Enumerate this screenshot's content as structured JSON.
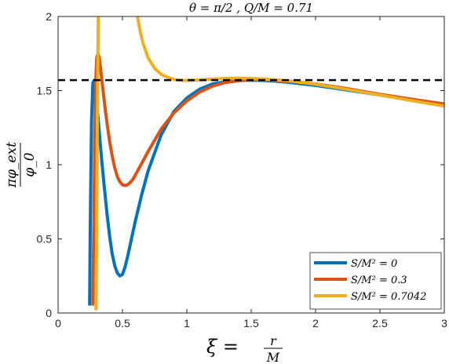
{
  "chart_data": {
    "type": "line",
    "title": "θ = π/2 ,    Q/M = 0.71",
    "xlabel": {
      "lhs": "ξ =",
      "num": "r",
      "den": "M"
    },
    "ylabel": {
      "num": "πφ_ext",
      "den": "φ_0"
    },
    "xlim": [
      0,
      3
    ],
    "ylim": [
      0,
      2
    ],
    "xticks": [
      0,
      0.5,
      1,
      1.5,
      2,
      2.5,
      3
    ],
    "xtick_labels": [
      "0",
      "0.5",
      "1",
      "1.5",
      "2",
      "2.5",
      "3"
    ],
    "yticks": [
      0,
      0.5,
      1,
      1.5,
      2
    ],
    "ytick_labels": [
      "0",
      "0.5",
      "1",
      "1.5",
      "2"
    ],
    "grid": false,
    "legend_position": "bottom-right",
    "reference_line": {
      "y": 1.5708,
      "style": "dashed",
      "color": "#000000"
    },
    "series": [
      {
        "name": "S/M² = 0",
        "color": "#0072BD",
        "x": [
          0.245,
          0.25,
          0.26,
          0.27,
          0.28,
          0.29,
          0.3,
          0.32,
          0.34,
          0.36,
          0.38,
          0.4,
          0.42,
          0.44,
          0.46,
          0.48,
          0.5,
          0.52,
          0.54,
          0.56,
          0.6,
          0.65,
          0.7,
          0.8,
          0.9,
          1.0,
          1.1,
          1.2,
          1.3,
          1.4,
          1.5,
          1.6,
          1.7,
          1.8,
          2.0,
          2.2,
          2.5,
          2.8,
          3.0
        ],
        "y": [
          0.05,
          0.6,
          1.3,
          1.55,
          1.57,
          1.52,
          1.42,
          1.22,
          1.02,
          0.84,
          0.67,
          0.52,
          0.4,
          0.32,
          0.27,
          0.25,
          0.26,
          0.31,
          0.38,
          0.46,
          0.62,
          0.8,
          0.96,
          1.2,
          1.36,
          1.45,
          1.51,
          1.545,
          1.56,
          1.568,
          1.57,
          1.568,
          1.563,
          1.555,
          1.535,
          1.51,
          1.47,
          1.43,
          1.41
        ]
      },
      {
        "name": "S/M² = 0.3",
        "color": "#D95319",
        "x": [
          0.27,
          0.28,
          0.29,
          0.3,
          0.31,
          0.32,
          0.33,
          0.34,
          0.36,
          0.38,
          0.4,
          0.42,
          0.44,
          0.46,
          0.48,
          0.5,
          0.52,
          0.54,
          0.56,
          0.58,
          0.6,
          0.65,
          0.7,
          0.8,
          0.9,
          1.0,
          1.1,
          1.2,
          1.3,
          1.4,
          1.5,
          1.6,
          1.7,
          1.8,
          2.0,
          2.2,
          2.5,
          2.8,
          3.0
        ],
        "y": [
          0.05,
          0.8,
          1.5,
          1.72,
          1.75,
          1.72,
          1.65,
          1.57,
          1.42,
          1.28,
          1.16,
          1.06,
          0.98,
          0.92,
          0.885,
          0.865,
          0.86,
          0.865,
          0.88,
          0.9,
          0.93,
          1.01,
          1.09,
          1.24,
          1.35,
          1.43,
          1.49,
          1.53,
          1.555,
          1.567,
          1.572,
          1.572,
          1.568,
          1.562,
          1.545,
          1.52,
          1.475,
          1.435,
          1.41
        ]
      },
      {
        "name": "S/M² = 0.7042",
        "color": "#EDB120",
        "x": [
          0.295,
          0.3,
          0.305,
          0.31,
          0.315,
          0.32,
          0.61,
          0.62,
          0.64,
          0.66,
          0.7,
          0.75,
          0.8,
          0.85,
          0.9,
          0.95,
          1.0,
          1.1,
          1.2,
          1.3,
          1.4,
          1.5,
          1.6,
          1.7,
          1.8,
          1.9,
          2.0,
          2.2,
          2.5,
          2.8,
          3.0
        ],
        "y": [
          0.02,
          0.6,
          1.3,
          1.8,
          2.2,
          2.6,
          2.05,
          1.98,
          1.89,
          1.82,
          1.72,
          1.65,
          1.61,
          1.59,
          1.575,
          1.57,
          1.568,
          1.572,
          1.578,
          1.582,
          1.584,
          1.582,
          1.578,
          1.572,
          1.565,
          1.555,
          1.543,
          1.515,
          1.47,
          1.425,
          1.395
        ]
      }
    ]
  }
}
